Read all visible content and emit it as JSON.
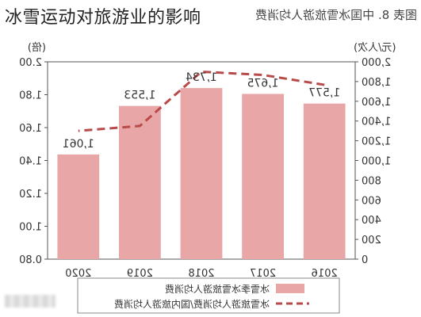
{
  "overlay_title": "冰雪运动对旅游业的影响",
  "original_caption": "图表 8. 中国冰雪旅游人均消费",
  "chart_data": {
    "type": "bar",
    "categories": [
      "2016",
      "2017",
      "2018",
      "2019",
      "2020"
    ],
    "series": [
      {
        "name": "冰雪季冰雪旅游人均消费",
        "type": "bar",
        "axis": "right",
        "values": [
          1577,
          1675,
          1734,
          1553,
          1061
        ],
        "data_labels": [
          "1,577",
          "1,675",
          "1,734",
          "1,553",
          "1,061"
        ],
        "color": "#e8a6a6"
      },
      {
        "name": "冰雪旅游人均消费/国内旅游人均消费",
        "type": "line",
        "axis": "left",
        "style": "dashed",
        "values": [
          1.86,
          1.92,
          1.94,
          1.61,
          1.58
        ],
        "color": "#b84a4a"
      }
    ],
    "left_axis": {
      "label": "(倍)",
      "min": 0.8,
      "max": 2.0,
      "ticks": [
        "0.80",
        "1.00",
        "1.20",
        "1.40",
        "1.60",
        "1.80",
        "2.00"
      ]
    },
    "right_axis": {
      "label": "(元/人次)",
      "min": 0,
      "max": 2000,
      "ticks": [
        "0",
        "200",
        "400",
        "600",
        "800",
        "1,000",
        "1,200",
        "1,400",
        "1,600",
        "1,800",
        "2,000"
      ]
    },
    "grid": false,
    "legend": "bottom",
    "note": "image is horizontally mirrored"
  }
}
